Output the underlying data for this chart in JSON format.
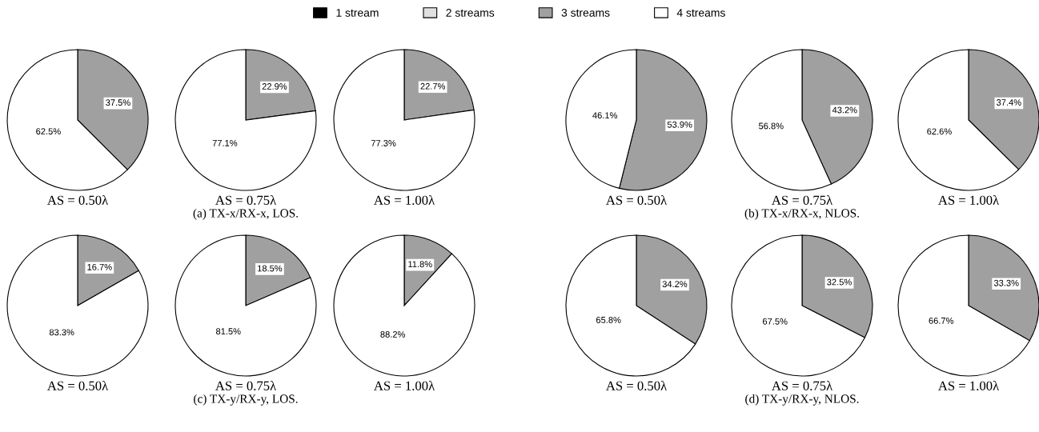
{
  "chart_data": [
    {
      "type": "pie",
      "xlabel": "AS = 0.50λ",
      "categories": [
        "1 stream",
        "2 streams",
        "3 streams",
        "4 streams"
      ],
      "values": [
        0,
        0,
        37.5,
        62.5
      ],
      "colors": [
        "#000000",
        "#e0e0e0",
        "#a0a0a0",
        "#ffffff"
      ],
      "value_labels": [
        null,
        null,
        "37.5%",
        "62.5%"
      ],
      "legend": "top"
    },
    {
      "type": "pie",
      "xlabel": "AS = 0.75λ",
      "categories": [
        null,
        null,
        null,
        null
      ],
      "values": [
        0,
        0,
        22.9,
        77.1
      ],
      "colors": [
        "#000000",
        "#e0e0e0",
        "#a0a0a0",
        "#ffffff"
      ],
      "value_labels": [
        null,
        null,
        "22.9%",
        "77.1%"
      ],
      "annotations": [
        "(a) TX-x/RX-x, LOS."
      ]
    },
    {
      "type": "pie",
      "xlabel": "AS = 1.00λ",
      "categories": [
        null,
        null,
        null,
        null
      ],
      "values": [
        0,
        0,
        22.7,
        77.3
      ],
      "colors": [
        "#000000",
        "#e0e0e0",
        "#a0a0a0",
        "#ffffff"
      ],
      "value_labels": [
        null,
        null,
        "22.7%",
        "77.3%"
      ]
    },
    {
      "type": "pie",
      "xlabel": "AS = 0.50λ",
      "categories": [
        null,
        null,
        null,
        null
      ],
      "values": [
        0,
        0,
        53.9,
        46.1
      ],
      "colors": [
        "#000000",
        "#e0e0e0",
        "#a0a0a0",
        "#ffffff"
      ],
      "value_labels": [
        null,
        null,
        "53.9%",
        "46.1%"
      ]
    },
    {
      "type": "pie",
      "xlabel": "AS = 0.75λ",
      "categories": [
        null,
        null,
        null,
        null
      ],
      "values": [
        0,
        0,
        43.2,
        56.8
      ],
      "colors": [
        "#000000",
        "#e0e0e0",
        "#a0a0a0",
        "#ffffff"
      ],
      "value_labels": [
        null,
        null,
        "43.2%",
        "56.8%"
      ],
      "annotations": [
        "(b) TX-x/RX-x, NLOS."
      ]
    },
    {
      "type": "pie",
      "xlabel": "AS = 1.00λ",
      "categories": [
        null,
        null,
        null,
        null
      ],
      "values": [
        0,
        0,
        37.4,
        62.6
      ],
      "colors": [
        "#000000",
        "#e0e0e0",
        "#a0a0a0",
        "#ffffff"
      ],
      "value_labels": [
        null,
        null,
        "37.4%",
        "62.6%"
      ]
    },
    {
      "type": "pie",
      "xlabel": "AS = 0.50λ",
      "categories": [
        null,
        null,
        null,
        null
      ],
      "values": [
        0,
        0,
        16.7,
        83.3
      ],
      "colors": [
        "#000000",
        "#e0e0e0",
        "#a0a0a0",
        "#ffffff"
      ],
      "value_labels": [
        null,
        null,
        "16.7%",
        "83.3%"
      ]
    },
    {
      "type": "pie",
      "xlabel": "AS = 0.75λ",
      "categories": [
        null,
        null,
        null,
        null
      ],
      "values": [
        0,
        0,
        18.5,
        81.5
      ],
      "colors": [
        "#000000",
        "#e0e0e0",
        "#a0a0a0",
        "#ffffff"
      ],
      "value_labels": [
        null,
        null,
        "18.5%",
        "81.5%"
      ],
      "annotations": [
        "(c) TX-y/RX-y, LOS."
      ]
    },
    {
      "type": "pie",
      "xlabel": "AS = 1.00λ",
      "categories": [
        null,
        null,
        null,
        null
      ],
      "values": [
        0,
        0,
        11.8,
        88.2
      ],
      "colors": [
        "#000000",
        "#e0e0e0",
        "#a0a0a0",
        "#ffffff"
      ],
      "value_labels": [
        null,
        null,
        "11.8%",
        "88.2%"
      ]
    },
    {
      "type": "pie",
      "xlabel": "AS = 0.50λ",
      "categories": [
        null,
        null,
        null,
        null
      ],
      "values": [
        0,
        0,
        34.2,
        65.8
      ],
      "colors": [
        "#000000",
        "#e0e0e0",
        "#a0a0a0",
        "#ffffff"
      ],
      "value_labels": [
        null,
        null,
        "34.2%",
        "65.8%"
      ]
    },
    {
      "type": "pie",
      "xlabel": "AS = 0.75λ",
      "categories": [
        null,
        null,
        null,
        null
      ],
      "values": [
        0,
        0,
        32.5,
        67.5
      ],
      "colors": [
        "#000000",
        "#e0e0e0",
        "#a0a0a0",
        "#ffffff"
      ],
      "value_labels": [
        null,
        null,
        "32.5%",
        "67.5%"
      ],
      "annotations": [
        "(d) TX-y/RX-y, NLOS."
      ]
    },
    {
      "type": "pie",
      "xlabel": "AS = 1.00λ",
      "categories": [
        null,
        null,
        null,
        null
      ],
      "values": [
        0,
        0,
        33.3,
        66.7
      ],
      "colors": [
        "#000000",
        "#e0e0e0",
        "#a0a0a0",
        "#ffffff"
      ],
      "value_labels": [
        null,
        null,
        "33.3%",
        "66.7%"
      ]
    }
  ]
}
